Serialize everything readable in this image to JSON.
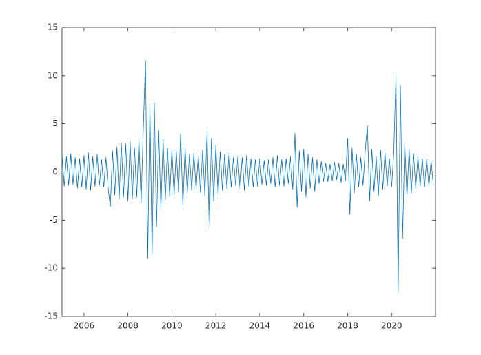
{
  "chart_data": {
    "type": "line",
    "x": [
      2005.0,
      2005.1,
      2005.2,
      2005.3,
      2005.4,
      2005.5,
      2005.6,
      2005.7,
      2005.8,
      2005.9,
      2006.0,
      2006.1,
      2006.2,
      2006.3,
      2006.4,
      2006.5,
      2006.6,
      2006.7,
      2006.8,
      2006.9,
      2007.0,
      2007.1,
      2007.2,
      2007.3,
      2007.4,
      2007.5,
      2007.6,
      2007.7,
      2007.8,
      2007.9,
      2008.0,
      2008.1,
      2008.2,
      2008.3,
      2008.4,
      2008.5,
      2008.6,
      2008.7,
      2008.8,
      2008.9,
      2009.0,
      2009.1,
      2009.2,
      2009.3,
      2009.4,
      2009.5,
      2009.6,
      2009.7,
      2009.8,
      2009.9,
      2010.0,
      2010.1,
      2010.2,
      2010.3,
      2010.4,
      2010.5,
      2010.6,
      2010.7,
      2010.8,
      2010.9,
      2011.0,
      2011.1,
      2011.2,
      2011.3,
      2011.4,
      2011.5,
      2011.6,
      2011.7,
      2011.8,
      2011.9,
      2012.0,
      2012.1,
      2012.2,
      2012.3,
      2012.4,
      2012.5,
      2012.6,
      2012.7,
      2012.8,
      2012.9,
      2013.0,
      2013.1,
      2013.2,
      2013.3,
      2013.4,
      2013.5,
      2013.6,
      2013.7,
      2013.8,
      2013.9,
      2014.0,
      2014.1,
      2014.2,
      2014.3,
      2014.4,
      2014.5,
      2014.6,
      2014.7,
      2014.8,
      2014.9,
      2015.0,
      2015.1,
      2015.2,
      2015.3,
      2015.4,
      2015.5,
      2015.6,
      2015.7,
      2015.8,
      2015.9,
      2016.0,
      2016.1,
      2016.2,
      2016.3,
      2016.4,
      2016.5,
      2016.6,
      2016.7,
      2016.8,
      2016.9,
      2017.0,
      2017.1,
      2017.2,
      2017.3,
      2017.4,
      2017.5,
      2017.6,
      2017.7,
      2017.8,
      2017.9,
      2018.0,
      2018.1,
      2018.2,
      2018.3,
      2018.4,
      2018.5,
      2018.6,
      2018.7,
      2018.8,
      2018.9,
      2019.0,
      2019.1,
      2019.2,
      2019.3,
      2019.4,
      2019.5,
      2019.6,
      2019.7,
      2019.8,
      2019.9,
      2020.0,
      2020.1,
      2020.2,
      2020.3,
      2020.4,
      2020.5,
      2020.6,
      2020.7,
      2020.8,
      2020.9,
      2021.0,
      2021.1,
      2021.2,
      2021.3,
      2021.4,
      2021.5,
      2021.6,
      2021.7,
      2021.8,
      2021.9
    ],
    "series": [
      {
        "color": "#0072bd",
        "values": [
          1.8,
          -1.5,
          1.6,
          -1.4,
          1.9,
          -1.3,
          1.5,
          -1.7,
          1.4,
          -1.6,
          1.7,
          -1.8,
          2.0,
          -1.9,
          1.6,
          -1.5,
          1.8,
          -1.4,
          1.3,
          -1.6,
          1.5,
          -1.7,
          -3.6,
          2.2,
          -2.4,
          2.6,
          -2.8,
          3.0,
          -2.6,
          2.9,
          -3.0,
          3.2,
          -2.8,
          2.5,
          -2.6,
          3.4,
          -3.2,
          4.5,
          11.6,
          -9.0,
          7.0,
          -8.5,
          7.2,
          -5.7,
          4.3,
          -3.9,
          3.4,
          -2.9,
          2.5,
          -2.6,
          2.3,
          -2.4,
          2.2,
          -2.1,
          4.0,
          -3.5,
          2.5,
          -2.2,
          1.8,
          -1.9,
          2.0,
          -1.8,
          1.7,
          -2.1,
          2.3,
          -2.5,
          4.2,
          -5.9,
          3.5,
          -3.0,
          2.8,
          -2.4,
          2.1,
          -1.9,
          1.8,
          -1.7,
          2.0,
          -1.6,
          1.5,
          -1.4,
          1.6,
          -1.8,
          1.5,
          -1.9,
          1.7,
          -1.5,
          1.4,
          -1.6,
          1.3,
          -1.5,
          1.4,
          -1.3,
          1.2,
          -1.4,
          1.3,
          -1.2,
          1.5,
          -1.6,
          1.7,
          -1.4,
          1.3,
          -1.5,
          1.4,
          -1.2,
          1.6,
          -1.8,
          4.0,
          -3.7,
          2.2,
          -2.0,
          2.4,
          -2.6,
          1.8,
          -1.7,
          1.5,
          -2.0,
          1.3,
          -1.2,
          1.1,
          -1.0,
          0.9,
          -1.0,
          0.8,
          -0.9,
          1.0,
          -0.8,
          0.9,
          -1.1,
          0.8,
          -0.9,
          3.5,
          -4.4,
          2.5,
          -2.2,
          1.8,
          -1.6,
          1.5,
          -1.4,
          2.2,
          4.8,
          -3.0,
          2.4,
          -2.0,
          1.6,
          -2.5,
          2.3,
          -1.8,
          2.0,
          -1.5,
          1.4,
          -1.6,
          2.0,
          10.0,
          -12.5,
          9.0,
          -6.9,
          3.0,
          -2.6,
          2.4,
          -2.2,
          1.9,
          -1.7,
          1.6,
          -1.5,
          1.4,
          -1.6,
          1.3,
          -1.5,
          1.2,
          -1.4
        ]
      }
    ],
    "xlim": [
      2005,
      2022
    ],
    "xticks": [
      2006,
      2008,
      2010,
      2012,
      2014,
      2016,
      2018,
      2020
    ],
    "ylim": [
      -15,
      15
    ],
    "yticks": [
      -15,
      -10,
      -5,
      0,
      5,
      10,
      15
    ]
  }
}
